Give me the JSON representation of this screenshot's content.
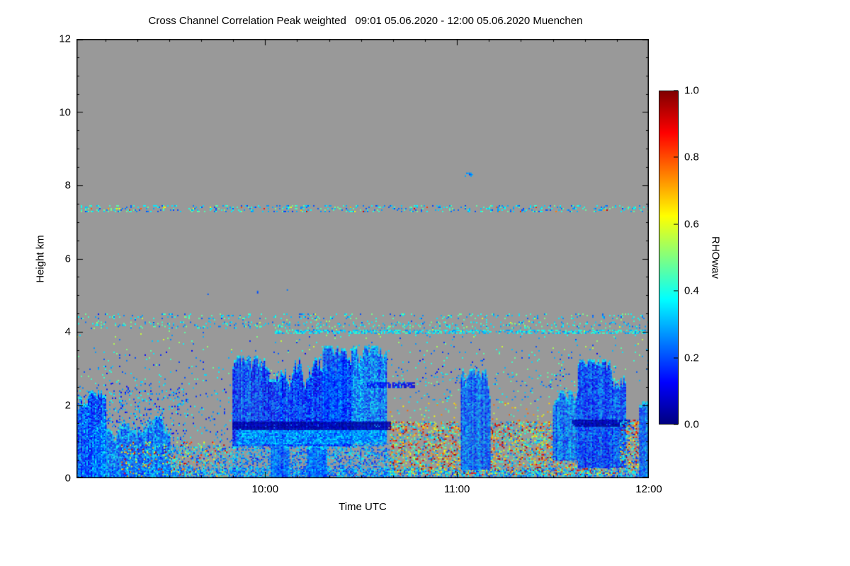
{
  "chart_data": {
    "type": "heatmap",
    "title": "Cross Channel Correlation Peak weighted   09:01 05.06.2020 - 12:00 05.06.2020 Muenchen",
    "xlabel": "Time UTC",
    "ylabel": "Height km",
    "x_range_hours": [
      9.0167,
      12.0
    ],
    "y_range_km": [
      0,
      12
    ],
    "plot_bg": "#999999",
    "no_data_color": "#999999",
    "xaxis": {
      "ticks": [
        {
          "value": 10.0,
          "label": "10:00"
        },
        {
          "value": 11.0,
          "label": "11:00"
        },
        {
          "value": 12.0,
          "label": "12:00"
        }
      ],
      "minor_step_hours": 0.1666667
    },
    "yaxis": {
      "ticks": [
        {
          "value": 0,
          "label": "0"
        },
        {
          "value": 2,
          "label": "2"
        },
        {
          "value": 4,
          "label": "4"
        },
        {
          "value": 6,
          "label": "6"
        },
        {
          "value": 8,
          "label": "8"
        },
        {
          "value": 10,
          "label": "10"
        },
        {
          "value": 12,
          "label": "12"
        }
      ],
      "minor_step_km": 0.5
    },
    "colorbar": {
      "label": "RHOwav",
      "range": [
        0.0,
        1.0
      ],
      "colormap": "jet",
      "stops": [
        [
          "0%",
          "#000080"
        ],
        [
          "12.5%",
          "#0000ff"
        ],
        [
          "37.5%",
          "#00ffff"
        ],
        [
          "50%",
          "#80ff80"
        ],
        [
          "62.5%",
          "#ffff00"
        ],
        [
          "87.5%",
          "#ff0000"
        ],
        [
          "100%",
          "#800000"
        ]
      ],
      "ticks": [
        {
          "value": 0.0,
          "label": "0.0"
        },
        {
          "value": 0.2,
          "label": "0.2"
        },
        {
          "value": 0.4,
          "label": "0.4"
        },
        {
          "value": 0.6,
          "label": "0.6"
        },
        {
          "value": 0.8,
          "label": "0.8"
        },
        {
          "value": 1.0,
          "label": "1.0"
        }
      ]
    },
    "notes": "Gray = no valid data. Blue/cyan structures (RHOwav 0.1-0.4) are cloud/boundary-layer features below ~3.7 km; dark navy band near 1.5 km inside the cloud layers; orange-red speckle (RHOwav 0.5-1.0) near the ground mainly 10:40-12:00; sparse speckle lines near 4.0-4.5 km and a thin band at ~7.35 km across the whole period.",
    "features": [
      {
        "type": "speckle",
        "t": [
          9.0167,
          12.0
        ],
        "h": [
          7.28,
          7.46
        ],
        "density": 0.22,
        "v": [
          0.18,
          0.5
        ]
      },
      {
        "type": "speckle",
        "t": [
          9.0167,
          12.0
        ],
        "h": [
          7.3,
          7.42
        ],
        "density": 0.02,
        "v": [
          0.55,
          0.95
        ]
      },
      {
        "type": "speckle",
        "t": [
          11.04,
          11.08
        ],
        "h": [
          8.25,
          8.35
        ],
        "density": 0.6,
        "v": [
          0.18,
          0.3
        ]
      },
      {
        "type": "speckle",
        "t": [
          9.3,
          10.3
        ],
        "h": [
          5.0,
          5.2
        ],
        "density": 0.006,
        "v": [
          0.15,
          0.3
        ]
      },
      {
        "type": "speckle",
        "t": [
          9.0167,
          12.0
        ],
        "h": [
          4.38,
          4.5
        ],
        "density": 0.12,
        "v": [
          0.2,
          0.5
        ]
      },
      {
        "type": "speckle",
        "t": [
          9.0167,
          12.0
        ],
        "h": [
          4.12,
          4.28
        ],
        "density": 0.15,
        "v": [
          0.2,
          0.5
        ]
      },
      {
        "type": "speckle",
        "t": [
          10.05,
          12.0
        ],
        "h": [
          3.95,
          4.06
        ],
        "density": 0.55,
        "v": [
          0.25,
          0.45
        ]
      },
      {
        "type": "speckle",
        "t": [
          9.0167,
          12.0
        ],
        "h": [
          3.5,
          4.5
        ],
        "density": 0.02,
        "v": [
          0.15,
          0.6
        ]
      },
      {
        "type": "speckle",
        "t": [
          9.0167,
          12.0
        ],
        "h": [
          2.6,
          3.5
        ],
        "density": 0.035,
        "v": [
          0.1,
          0.5
        ]
      },
      {
        "type": "speckle",
        "t": [
          9.0167,
          9.85
        ],
        "h": [
          1.0,
          2.6
        ],
        "density": 0.06,
        "v": [
          0.12,
          0.4
        ]
      },
      {
        "type": "speckle",
        "t": [
          9.0167,
          12.0
        ],
        "h": [
          0.0,
          0.28
        ],
        "density": 0.5,
        "v": [
          0.15,
          0.4
        ]
      },
      {
        "type": "cloud",
        "t": [
          9.0167,
          9.17
        ],
        "base": 0.0,
        "top": [
          1.8,
          2.4
        ],
        "v": [
          0.12,
          0.3
        ],
        "walk": 0.25
      },
      {
        "type": "cloud",
        "t": [
          9.1,
          9.5
        ],
        "base": 0.0,
        "top": [
          0.8,
          1.7
        ],
        "v": [
          0.15,
          0.35
        ],
        "walk": 0.2
      },
      {
        "type": "speckle",
        "t": [
          9.0167,
          9.6
        ],
        "h": [
          0.0,
          2.4
        ],
        "density": 0.1,
        "v": [
          0.12,
          0.4
        ]
      },
      {
        "type": "speckle",
        "t": [
          9.25,
          9.8
        ],
        "h": [
          0.0,
          1.0
        ],
        "density": 0.12,
        "v": [
          0.45,
          0.95
        ]
      },
      {
        "type": "speckle",
        "t": [
          9.5,
          9.85
        ],
        "h": [
          0.0,
          0.9
        ],
        "density": 0.3,
        "v": [
          0.15,
          0.45
        ]
      },
      {
        "type": "speckle",
        "t": [
          9.83,
          10.67
        ],
        "h": [
          0.0,
          0.95
        ],
        "density": 0.45,
        "v": [
          0.15,
          0.38
        ]
      },
      {
        "type": "cloud",
        "t": [
          10.03,
          10.12
        ],
        "base": 0.0,
        "top": [
          0.85,
          0.95
        ],
        "v": [
          0.15,
          0.3
        ],
        "walk": 0.05
      },
      {
        "type": "cloud",
        "t": [
          10.22,
          10.32
        ],
        "base": 0.0,
        "top": [
          0.85,
          0.95
        ],
        "v": [
          0.15,
          0.3
        ],
        "walk": 0.05
      },
      {
        "type": "cloud",
        "t": [
          9.83,
          10.08
        ],
        "base": 0.9,
        "top": [
          2.7,
          3.35
        ],
        "v": [
          0.1,
          0.28
        ],
        "walk": 0.3
      },
      {
        "type": "cloud",
        "t": [
          10.08,
          10.45
        ],
        "base": 0.9,
        "top": [
          2.5,
          3.3
        ],
        "v": [
          0.1,
          0.28
        ],
        "walk": 0.3
      },
      {
        "type": "cloud",
        "t": [
          10.3,
          10.42
        ],
        "base": 0.9,
        "top": [
          3.3,
          3.62
        ],
        "v": [
          0.12,
          0.3
        ],
        "walk": 0.2
      },
      {
        "type": "cloud",
        "t": [
          10.45,
          10.63
        ],
        "base": 1.0,
        "top": [
          3.15,
          3.62
        ],
        "v": [
          0.15,
          0.35
        ],
        "walk": 0.25
      },
      {
        "type": "speckle",
        "t": [
          9.85,
          10.63
        ],
        "h": [
          0.95,
          1.35
        ],
        "density": 0.9,
        "v": [
          0.18,
          0.38
        ]
      },
      {
        "type": "speckle",
        "t": [
          9.83,
          10.65
        ],
        "h": [
          1.35,
          1.55
        ],
        "density": 0.95,
        "v": [
          0.0,
          0.08
        ]
      },
      {
        "type": "speckle",
        "t": [
          10.53,
          10.78
        ],
        "h": [
          2.5,
          2.62
        ],
        "density": 0.7,
        "v": [
          0.05,
          0.18
        ]
      },
      {
        "type": "speckle",
        "t": [
          10.65,
          11.85
        ],
        "h": [
          0.1,
          1.55
        ],
        "density": 0.3,
        "v": [
          0.45,
          1.0
        ]
      },
      {
        "type": "speckle",
        "t": [
          10.65,
          11.85
        ],
        "h": [
          0.1,
          1.55
        ],
        "density": 0.18,
        "v": [
          0.2,
          0.45
        ]
      },
      {
        "type": "speckle",
        "t": [
          10.65,
          11.85
        ],
        "h": [
          1.55,
          2.1
        ],
        "density": 0.06,
        "v": [
          0.3,
          0.8
        ]
      },
      {
        "type": "speckle",
        "t": [
          10.65,
          11.85
        ],
        "h": [
          2.1,
          2.9
        ],
        "density": 0.05,
        "v": [
          0.15,
          0.5
        ]
      },
      {
        "type": "cloud",
        "t": [
          11.02,
          11.17
        ],
        "base": 0.25,
        "top": [
          2.2,
          3.0
        ],
        "v": [
          0.15,
          0.32
        ],
        "walk": 0.3
      },
      {
        "type": "cloud",
        "t": [
          11.5,
          11.63
        ],
        "base": 0.5,
        "top": [
          1.5,
          2.4
        ],
        "v": [
          0.15,
          0.33
        ],
        "walk": 0.25
      },
      {
        "type": "cloud",
        "t": [
          11.63,
          11.88
        ],
        "base": 0.3,
        "top": [
          2.5,
          3.25
        ],
        "v": [
          0.1,
          0.28
        ],
        "walk": 0.3
      },
      {
        "type": "speckle",
        "t": [
          11.6,
          11.9
        ],
        "h": [
          1.42,
          1.6
        ],
        "density": 0.9,
        "v": [
          0.0,
          0.08
        ]
      },
      {
        "type": "speckle",
        "t": [
          11.85,
          12.0
        ],
        "h": [
          0.2,
          1.6
        ],
        "density": 0.3,
        "v": [
          0.45,
          1.0
        ]
      },
      {
        "type": "speckle",
        "t": [
          11.85,
          12.0
        ],
        "h": [
          0.2,
          1.6
        ],
        "density": 0.22,
        "v": [
          0.15,
          0.4
        ]
      },
      {
        "type": "cloud",
        "t": [
          11.95,
          12.0
        ],
        "base": 0.0,
        "top": [
          1.8,
          2.1
        ],
        "v": [
          0.15,
          0.3
        ],
        "walk": 0.2
      }
    ]
  }
}
